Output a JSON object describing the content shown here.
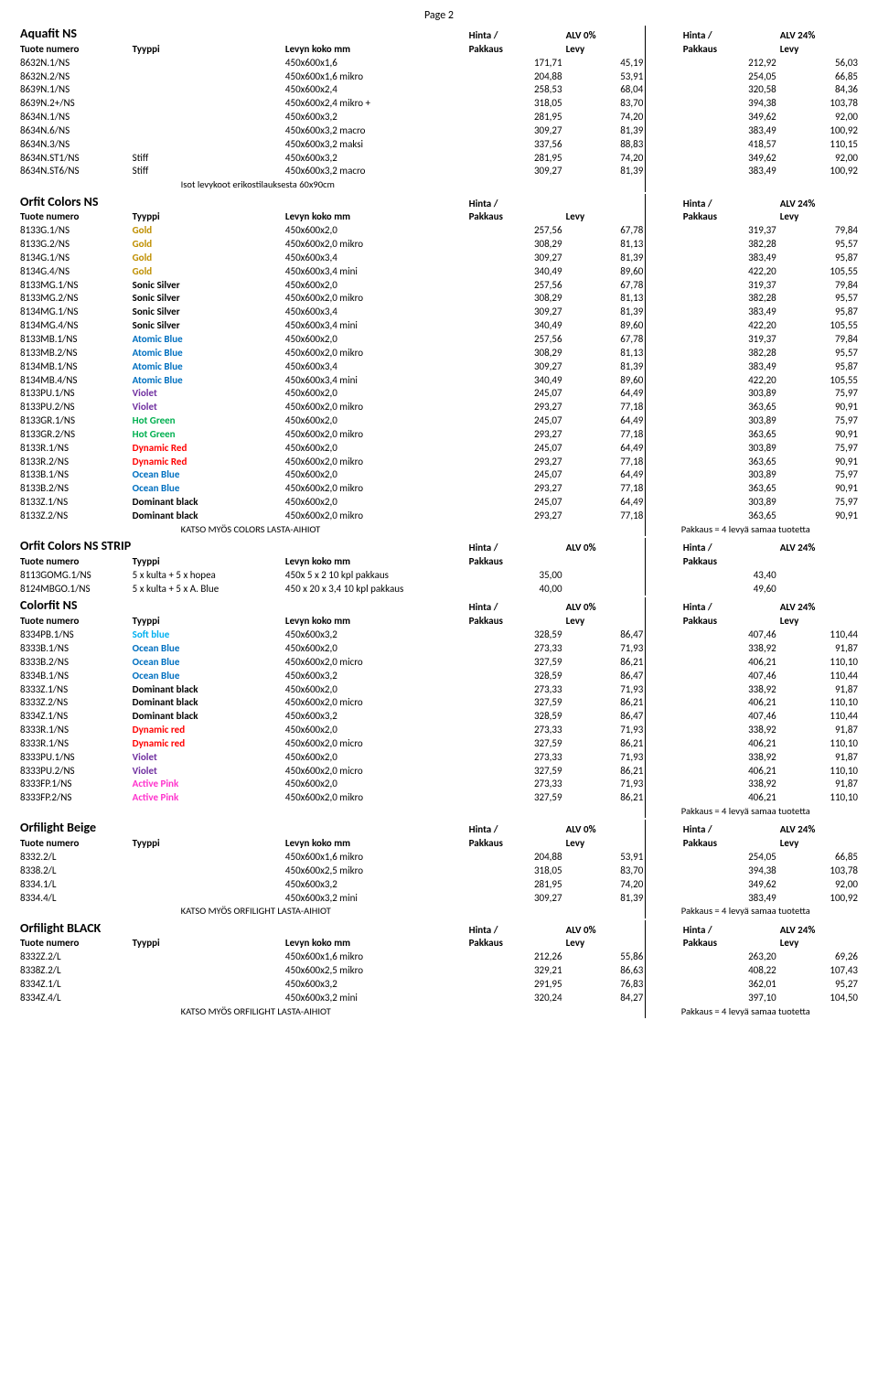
{
  "page_label": "Page 2",
  "labels": {
    "tuote": "Tuote numero",
    "tyyppi": "Tyyppi",
    "levyn": "Levyn koko mm",
    "hinta": "Hinta /",
    "alv0": "ALV 0%",
    "alv24": "ALV 24%",
    "pakkaus": "Pakkaus",
    "levy": "Levy"
  },
  "type_colors": {
    "Gold": "#bf8f00",
    "Sonic Silver": "#000000",
    "Atomic Blue": "#0070c0",
    "Violet": "#7030a0",
    "Hot Green": "#00b050",
    "Dynamic Red": "#ff0000",
    "Dynamic red": "#ff0000",
    "Ocean Blue": "#0070c0",
    "Dominant black": "#000000",
    "Soft blue": "#00b0f0",
    "Active Pink": "#ff33cc",
    "Stiff": "#000000"
  },
  "sections": [
    {
      "title": "Aquafit NS",
      "rows": [
        [
          "8632N.1/NS",
          "",
          "450x600x1,6",
          "171,71",
          "45,19",
          "212,92",
          "56,03"
        ],
        [
          "8632N.2/NS",
          "",
          "450x600x1,6 mikro",
          "204,88",
          "53,91",
          "254,05",
          "66,85"
        ],
        [
          "8639N.1/NS",
          "",
          "450x600x2,4",
          "258,53",
          "68,04",
          "320,58",
          "84,36"
        ],
        [
          "8639N.2+/NS",
          "",
          "450x600x2,4 mikro +",
          "318,05",
          "83,70",
          "394,38",
          "103,78"
        ],
        [
          "8634N.1/NS",
          "",
          "450x600x3,2",
          "281,95",
          "74,20",
          "349,62",
          "92,00"
        ],
        [
          "8634N.6/NS",
          "",
          "450x600x3,2 macro",
          "309,27",
          "81,39",
          "383,49",
          "100,92"
        ],
        [
          "8634N.3/NS",
          "",
          "450x600x3,2 maksi",
          "337,56",
          "88,83",
          "418,57",
          "110,15"
        ],
        [
          "8634N.ST1/NS",
          "Stiff",
          "450x600x3,2",
          "281,95",
          "74,20",
          "349,62",
          "92,00"
        ],
        [
          "8634N.ST6/NS",
          "Stiff",
          "450x600x3,2 macro",
          "309,27",
          "81,39",
          "383,49",
          "100,92"
        ]
      ],
      "footnote_left": "Isot levykoot erikostilauksesta 60x90cm"
    },
    {
      "title": "Orfit Colors NS",
      "hide_alv0": true,
      "rows": [
        [
          "8133G.1/NS",
          "Gold",
          "450x600x2,0",
          "257,56",
          "67,78",
          "319,37",
          "79,84"
        ],
        [
          "8133G.2/NS",
          "Gold",
          "450x600x2,0 mikro",
          "308,29",
          "81,13",
          "382,28",
          "95,57"
        ],
        [
          "8134G.1/NS",
          "Gold",
          "450x600x3,4",
          "309,27",
          "81,39",
          "383,49",
          "95,87"
        ],
        [
          "8134G.4/NS",
          "Gold",
          "450x600x3,4 mini",
          "340,49",
          "89,60",
          "422,20",
          "105,55"
        ],
        [
          "8133MG.1/NS",
          "Sonic Silver",
          "450x600x2,0",
          "257,56",
          "67,78",
          "319,37",
          "79,84"
        ],
        [
          "8133MG.2/NS",
          "Sonic Silver",
          "450x600x2,0 mikro",
          "308,29",
          "81,13",
          "382,28",
          "95,57"
        ],
        [
          "8134MG.1/NS",
          "Sonic Silver",
          "450x600x3,4",
          "309,27",
          "81,39",
          "383,49",
          "95,87"
        ],
        [
          "8134MG.4/NS",
          "Sonic Silver",
          "450x600x3,4 mini",
          "340,49",
          "89,60",
          "422,20",
          "105,55"
        ],
        [
          "8133MB.1/NS",
          "Atomic Blue",
          "450x600x2,0",
          "257,56",
          "67,78",
          "319,37",
          "79,84"
        ],
        [
          "8133MB.2/NS",
          "Atomic Blue",
          "450x600x2,0 mikro",
          "308,29",
          "81,13",
          "382,28",
          "95,57"
        ],
        [
          "8134MB.1/NS",
          "Atomic Blue",
          "450x600x3,4",
          "309,27",
          "81,39",
          "383,49",
          "95,87"
        ],
        [
          "8134MB.4/NS",
          "Atomic Blue",
          "450x600x3,4 mini",
          "340,49",
          "89,60",
          "422,20",
          "105,55"
        ],
        [
          "8133PU.1/NS",
          "Violet",
          "450x600x2,0",
          "245,07",
          "64,49",
          "303,89",
          "75,97"
        ],
        [
          "8133PU.2/NS",
          "Violet",
          "450x600x2,0 mikro",
          "293,27",
          "77,18",
          "363,65",
          "90,91"
        ],
        [
          "8133GR.1/NS",
          "Hot Green",
          "450x600x2,0",
          "245,07",
          "64,49",
          "303,89",
          "75,97"
        ],
        [
          "8133GR.2/NS",
          "Hot Green",
          "450x600x2,0 mikro",
          "293,27",
          "77,18",
          "363,65",
          "90,91"
        ],
        [
          "8133R.1/NS",
          "Dynamic Red",
          "450x600x2,0",
          "245,07",
          "64,49",
          "303,89",
          "75,97"
        ],
        [
          "8133R.2/NS",
          "Dynamic Red",
          "450x600x2,0 mikro",
          "293,27",
          "77,18",
          "363,65",
          "90,91"
        ],
        [
          "8133B.1/NS",
          "Ocean Blue",
          "450x600x2,0",
          "245,07",
          "64,49",
          "303,89",
          "75,97"
        ],
        [
          "8133B.2/NS",
          "Ocean Blue",
          "450x600x2,0 mikro",
          "293,27",
          "77,18",
          "363,65",
          "90,91"
        ],
        [
          "8133Z.1/NS",
          "Dominant black",
          "450x600x2,0",
          "245,07",
          "64,49",
          "303,89",
          "75,97"
        ],
        [
          "8133Z.2/NS",
          "Dominant black",
          "450x600x2,0 mikro",
          "293,27",
          "77,18",
          "363,65",
          "90,91"
        ]
      ],
      "footnote_left": "KATSO MYÖS COLORS LASTA-AIHIOT",
      "footnote_right": "Pakkaus = 4 levyä samaa tuotetta"
    },
    {
      "title": "Orfit Colors NS STRIPS",
      "hide_levy": true,
      "rows": [
        [
          "8113GOMG.1/NS",
          "5 x kulta + 5 x hopea",
          "450x 5 x 2      10 kpl pakkaus",
          "35,00",
          "",
          "43,40",
          ""
        ],
        [
          "8124MBGO.1/NS",
          "5 x kulta + 5 x A. Blue",
          "450 x 20 x 3,4  10 kpl pakkaus",
          "40,00",
          "",
          "49,60",
          ""
        ]
      ]
    },
    {
      "title": "Colorfit NS",
      "rows": [
        [
          "8334PB.1/NS",
          "Soft blue",
          "450x600x3,2",
          "328,59",
          "86,47",
          "407,46",
          "110,44"
        ],
        [
          "8333B.1/NS",
          "Ocean Blue",
          "450x600x2,0",
          "273,33",
          "71,93",
          "338,92",
          "91,87"
        ],
        [
          "8333B.2/NS",
          "Ocean Blue",
          "450x600x2,0 micro",
          "327,59",
          "86,21",
          "406,21",
          "110,10"
        ],
        [
          "8334B.1/NS",
          "Ocean Blue",
          "450x600x3,2",
          "328,59",
          "86,47",
          "407,46",
          "110,44"
        ],
        [
          "8333Z.1/NS",
          "Dominant black",
          "450x600x2,0",
          "273,33",
          "71,93",
          "338,92",
          "91,87"
        ],
        [
          "8333Z.2/NS",
          "Dominant black",
          "450x600x2,0 micro",
          "327,59",
          "86,21",
          "406,21",
          "110,10"
        ],
        [
          "8334Z.1/NS",
          "Dominant black",
          "450x600x3,2",
          "328,59",
          "86,47",
          "407,46",
          "110,44"
        ],
        [
          "8333R.1/NS",
          "Dynamic red",
          "450x600x2,0",
          "273,33",
          "71,93",
          "338,92",
          "91,87"
        ],
        [
          "8333R.1/NS",
          "Dynamic red",
          "450x600x2,0 micro",
          "327,59",
          "86,21",
          "406,21",
          "110,10"
        ],
        [
          "8333PU.1/NS",
          "Violet",
          "450x600x2,0",
          "273,33",
          "71,93",
          "338,92",
          "91,87"
        ],
        [
          "8333PU.2/NS",
          "Violet",
          "450x600x2,0 micro",
          "327,59",
          "86,21",
          "406,21",
          "110,10"
        ],
        [
          "8333FP.1/NS",
          "Active Pink",
          "450x600x2,0",
          "273,33",
          "71,93",
          "338,92",
          "91,87"
        ],
        [
          "8333FP.2/NS",
          "Active Pink",
          "450x600x2,0 mikro",
          "327,59",
          "86,21",
          "406,21",
          "110,10"
        ]
      ],
      "footnote_right": "Pakkaus = 4 levyä samaa tuotetta"
    },
    {
      "title": "Orfilight Beige",
      "rows": [
        [
          "8332.2/L",
          "",
          "450x600x1,6 mikro",
          "204,88",
          "53,91",
          "254,05",
          "66,85"
        ],
        [
          "8338.2/L",
          "",
          "450x600x2,5 mikro",
          "318,05",
          "83,70",
          "394,38",
          "103,78"
        ],
        [
          "8334.1/L",
          "",
          "450x600x3,2",
          "281,95",
          "74,20",
          "349,62",
          "92,00"
        ],
        [
          "8334.4/L",
          "",
          "450x600x3,2 mini",
          "309,27",
          "81,39",
          "383,49",
          "100,92"
        ]
      ],
      "footnote_left": "KATSO MYÖS ORFILIGHT LASTA-AIHIOT",
      "footnote_right": "Pakkaus = 4 levyä samaa tuotetta"
    },
    {
      "title": "Orfilight BLACK",
      "rows": [
        [
          "8332Z.2/L",
          "",
          "450x600x1,6 mikro",
          "212,26",
          "55,86",
          "263,20",
          "69,26"
        ],
        [
          "8338Z.2/L",
          "",
          "450x600x2,5 mikro",
          "329,21",
          "86,63",
          "408,22",
          "107,43"
        ],
        [
          "8334Z.1/L",
          "",
          "450x600x3,2",
          "291,95",
          "76,83",
          "362,01",
          "95,27"
        ],
        [
          "8334Z.4/L",
          "",
          "450x600x3,2 mini",
          "320,24",
          "84,27",
          "397,10",
          "104,50"
        ]
      ],
      "footnote_left": "KATSO MYÖS ORFILIGHT LASTA-AIHIOT",
      "footnote_right": "Pakkaus = 4 levyä samaa tuotetta"
    }
  ]
}
